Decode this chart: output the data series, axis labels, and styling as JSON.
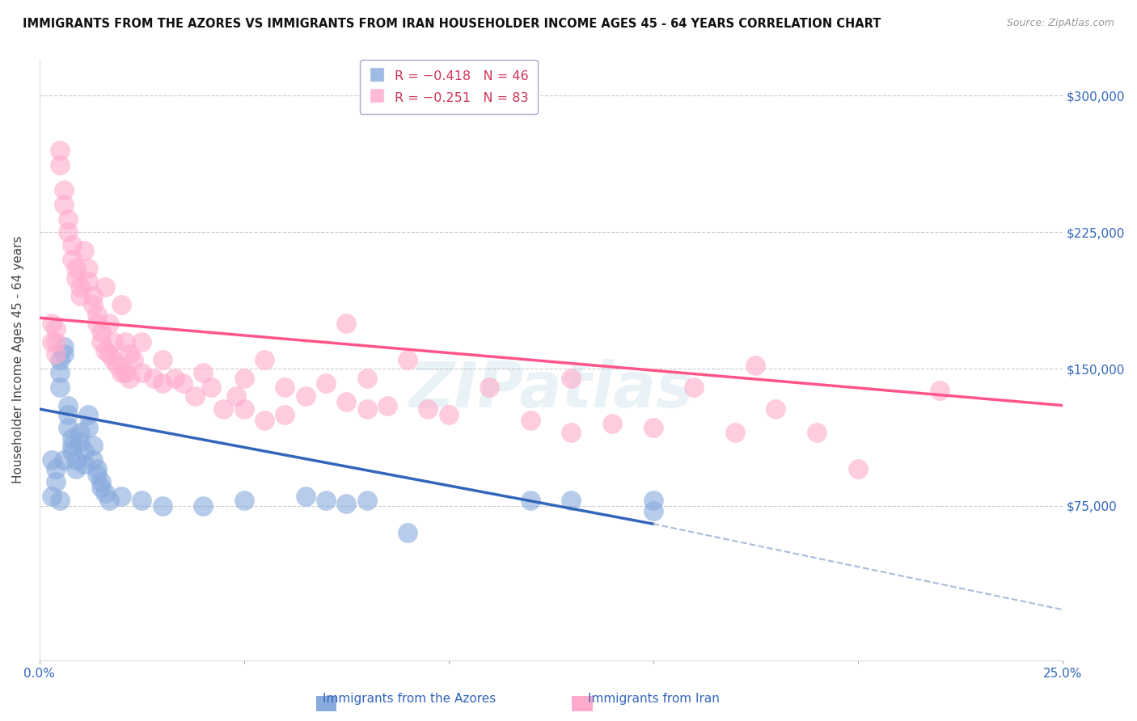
{
  "title": "IMMIGRANTS FROM THE AZORES VS IMMIGRANTS FROM IRAN HOUSEHOLDER INCOME AGES 45 - 64 YEARS CORRELATION CHART",
  "source": "Source: ZipAtlas.com",
  "ylabel": "Householder Income Ages 45 - 64 years",
  "yticks": [
    0,
    75000,
    150000,
    225000,
    300000
  ],
  "ytick_labels": [
    "",
    "$75,000",
    "$150,000",
    "$225,000",
    "$300,000"
  ],
  "ylim": [
    -10000,
    320000
  ],
  "xlim": [
    0.0,
    0.25
  ],
  "color_azores": "#88AADD",
  "color_iran": "#FFAACC",
  "color_azores_line": "#3366BB",
  "color_iran_line": "#FF5588",
  "color_azores_line_dash": "#AABBDD",
  "watermark": "ZIPatlas",
  "az_line_x0": 0.0,
  "az_line_y0": 128000,
  "az_line_x1": 0.15,
  "az_line_y1": 65000,
  "az_line_dash_x0": 0.15,
  "az_line_dash_y0": 65000,
  "az_line_dash_x1": 0.25,
  "az_line_dash_y1": 18000,
  "ir_line_x0": 0.0,
  "ir_line_y0": 178000,
  "ir_line_x1": 0.25,
  "ir_line_y1": 130000,
  "azores_points": [
    [
      0.003,
      100000
    ],
    [
      0.004,
      95000
    ],
    [
      0.004,
      88000
    ],
    [
      0.005,
      155000
    ],
    [
      0.005,
      148000
    ],
    [
      0.005,
      140000
    ],
    [
      0.006,
      162000
    ],
    [
      0.006,
      158000
    ],
    [
      0.007,
      130000
    ],
    [
      0.007,
      125000
    ],
    [
      0.007,
      118000
    ],
    [
      0.008,
      112000
    ],
    [
      0.008,
      108000
    ],
    [
      0.008,
      105000
    ],
    [
      0.009,
      100000
    ],
    [
      0.009,
      95000
    ],
    [
      0.01,
      115000
    ],
    [
      0.01,
      110000
    ],
    [
      0.011,
      105000
    ],
    [
      0.011,
      98000
    ],
    [
      0.012,
      125000
    ],
    [
      0.012,
      118000
    ],
    [
      0.013,
      108000
    ],
    [
      0.013,
      100000
    ],
    [
      0.014,
      95000
    ],
    [
      0.014,
      92000
    ],
    [
      0.015,
      88000
    ],
    [
      0.015,
      85000
    ],
    [
      0.016,
      82000
    ],
    [
      0.017,
      78000
    ],
    [
      0.02,
      80000
    ],
    [
      0.025,
      78000
    ],
    [
      0.03,
      75000
    ],
    [
      0.04,
      75000
    ],
    [
      0.05,
      78000
    ],
    [
      0.065,
      80000
    ],
    [
      0.07,
      78000
    ],
    [
      0.075,
      76000
    ],
    [
      0.08,
      78000
    ],
    [
      0.09,
      60000
    ],
    [
      0.12,
      78000
    ],
    [
      0.13,
      78000
    ],
    [
      0.15,
      78000
    ],
    [
      0.15,
      72000
    ],
    [
      0.003,
      80000
    ],
    [
      0.005,
      78000
    ],
    [
      0.006,
      100000
    ]
  ],
  "iran_points": [
    [
      0.003,
      175000
    ],
    [
      0.003,
      165000
    ],
    [
      0.004,
      172000
    ],
    [
      0.004,
      165000
    ],
    [
      0.004,
      158000
    ],
    [
      0.005,
      270000
    ],
    [
      0.005,
      262000
    ],
    [
      0.006,
      248000
    ],
    [
      0.006,
      240000
    ],
    [
      0.007,
      232000
    ],
    [
      0.007,
      225000
    ],
    [
      0.008,
      218000
    ],
    [
      0.008,
      210000
    ],
    [
      0.009,
      205000
    ],
    [
      0.009,
      200000
    ],
    [
      0.01,
      195000
    ],
    [
      0.01,
      190000
    ],
    [
      0.011,
      215000
    ],
    [
      0.012,
      205000
    ],
    [
      0.012,
      198000
    ],
    [
      0.013,
      190000
    ],
    [
      0.013,
      185000
    ],
    [
      0.014,
      180000
    ],
    [
      0.014,
      175000
    ],
    [
      0.015,
      170000
    ],
    [
      0.015,
      165000
    ],
    [
      0.016,
      195000
    ],
    [
      0.016,
      160000
    ],
    [
      0.017,
      175000
    ],
    [
      0.017,
      158000
    ],
    [
      0.018,
      165000
    ],
    [
      0.018,
      155000
    ],
    [
      0.019,
      152000
    ],
    [
      0.02,
      185000
    ],
    [
      0.02,
      148000
    ],
    [
      0.021,
      165000
    ],
    [
      0.021,
      148000
    ],
    [
      0.022,
      158000
    ],
    [
      0.022,
      145000
    ],
    [
      0.023,
      155000
    ],
    [
      0.025,
      165000
    ],
    [
      0.025,
      148000
    ],
    [
      0.028,
      145000
    ],
    [
      0.03,
      155000
    ],
    [
      0.03,
      142000
    ],
    [
      0.033,
      145000
    ],
    [
      0.035,
      142000
    ],
    [
      0.038,
      135000
    ],
    [
      0.04,
      148000
    ],
    [
      0.042,
      140000
    ],
    [
      0.045,
      128000
    ],
    [
      0.048,
      135000
    ],
    [
      0.05,
      145000
    ],
    [
      0.05,
      128000
    ],
    [
      0.055,
      155000
    ],
    [
      0.055,
      122000
    ],
    [
      0.06,
      140000
    ],
    [
      0.06,
      125000
    ],
    [
      0.065,
      135000
    ],
    [
      0.07,
      142000
    ],
    [
      0.075,
      175000
    ],
    [
      0.075,
      132000
    ],
    [
      0.08,
      145000
    ],
    [
      0.08,
      128000
    ],
    [
      0.085,
      130000
    ],
    [
      0.09,
      155000
    ],
    [
      0.095,
      128000
    ],
    [
      0.1,
      125000
    ],
    [
      0.11,
      140000
    ],
    [
      0.12,
      122000
    ],
    [
      0.13,
      145000
    ],
    [
      0.13,
      115000
    ],
    [
      0.14,
      120000
    ],
    [
      0.15,
      118000
    ],
    [
      0.16,
      140000
    ],
    [
      0.17,
      115000
    ],
    [
      0.175,
      152000
    ],
    [
      0.18,
      128000
    ],
    [
      0.19,
      115000
    ],
    [
      0.2,
      95000
    ],
    [
      0.22,
      138000
    ]
  ]
}
